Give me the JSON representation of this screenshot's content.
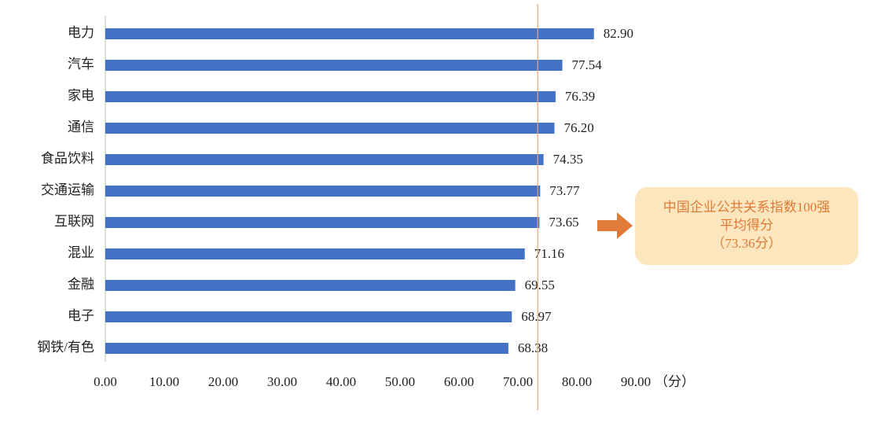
{
  "chart_data": {
    "type": "bar",
    "orientation": "horizontal",
    "categories": [
      "电力",
      "汽车",
      "家电",
      "通信",
      "食品饮料",
      "交通运输",
      "互联网",
      "混业",
      "金融",
      "电子",
      "钢铁/有色"
    ],
    "values": [
      82.9,
      77.54,
      76.39,
      76.2,
      74.35,
      73.77,
      73.65,
      71.16,
      69.55,
      68.97,
      68.38
    ],
    "value_labels": [
      "82.90",
      "77.54",
      "76.39",
      "76.20",
      "74.35",
      "73.77",
      "73.65",
      "71.16",
      "69.55",
      "68.97",
      "68.38"
    ],
    "color": "#4472c4",
    "xlim": [
      0,
      90
    ],
    "xticks": [
      {
        "value": 0,
        "label": "0.00"
      },
      {
        "value": 10,
        "label": "10.00"
      },
      {
        "value": 20,
        "label": "20.00"
      },
      {
        "value": 30,
        "label": "30.00"
      },
      {
        "value": 40,
        "label": "40.00"
      },
      {
        "value": 50,
        "label": "50.00"
      },
      {
        "value": 60,
        "label": "60.00"
      },
      {
        "value": 70,
        "label": "70.00"
      },
      {
        "value": 80,
        "label": "80.00"
      },
      {
        "value": 90,
        "label": "90.00"
      }
    ],
    "x_label": "（分）",
    "reference_line": {
      "value": 73.36,
      "color": "#e8a07a"
    },
    "annotation": [
      "中国企业公共关系指数100强",
      "平均得分",
      "（73.36分）"
    ]
  }
}
